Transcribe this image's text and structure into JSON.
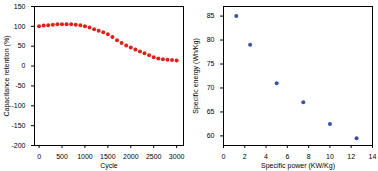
{
  "chart_data": [
    {
      "type": "scatter",
      "x_label": "Cycle",
      "y_label": "Capacitance retention (%)",
      "x": [
        0,
        100,
        200,
        300,
        400,
        500,
        600,
        700,
        800,
        900,
        1000,
        1100,
        1200,
        1300,
        1400,
        1500,
        1600,
        1700,
        1800,
        1900,
        2000,
        2100,
        2200,
        2300,
        2400,
        2500,
        2600,
        2700,
        2800,
        2900,
        3000
      ],
      "series": [
        {
          "color": "#e0201b",
          "marker": "circle",
          "values": [
            100,
            102,
            103,
            104,
            105,
            105,
            105,
            105,
            104,
            103,
            100,
            97,
            93,
            89,
            85,
            80,
            73,
            65,
            58,
            52,
            47,
            42,
            37,
            32,
            27,
            22,
            19,
            17,
            16,
            15,
            14
          ]
        }
      ],
      "xlim": [
        -100,
        3150
      ],
      "xticks": [
        0,
        500,
        1000,
        1500,
        2000,
        2500,
        3000
      ],
      "ylim": [
        -200,
        150
      ],
      "yticks": [
        -200,
        -150,
        -100,
        -50,
        0,
        50,
        100,
        150
      ],
      "grid": false
    },
    {
      "type": "scatter",
      "x_label": "Specific power (KW/Kg)",
      "y_label": "Specific energy (Wh/Kg)",
      "x": [
        1.2,
        2.5,
        5,
        7.5,
        10,
        12.5
      ],
      "series": [
        {
          "color": "#3a50a8",
          "marker": "circle",
          "values": [
            85,
            79,
            71,
            67,
            62.5,
            59.5
          ]
        }
      ],
      "xlim": [
        0,
        14
      ],
      "xticks": [
        0,
        2,
        4,
        6,
        8,
        10,
        12,
        14
      ],
      "ylim": [
        58,
        87
      ],
      "yticks": [
        60,
        65,
        70,
        75,
        80,
        85
      ],
      "grid": false
    }
  ]
}
